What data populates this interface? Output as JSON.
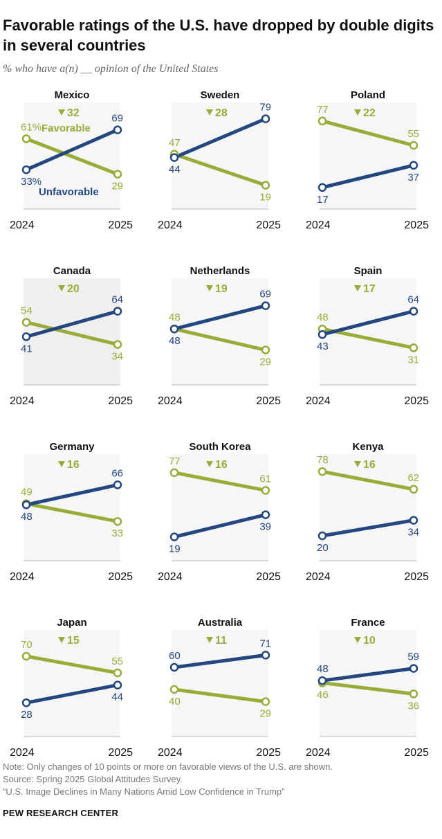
{
  "title": "Favorable ratings of the U.S. have dropped by double digits in several countries",
  "subtitle": "% who have a(n) __ opinion of the United States",
  "colors": {
    "favorable": "#9aab39",
    "unfavorable": "#24477f",
    "panel_shaded": "#efefef",
    "panel_plain": "#f6f6f6",
    "axis": "#bbbbbb"
  },
  "legend": {
    "favorable": "Favorable",
    "unfavorable": "Unfavorable"
  },
  "chart_data": {
    "type": "line",
    "x": [
      "2024",
      "2025"
    ],
    "ylim": [
      0,
      100
    ],
    "series_names": [
      "Favorable",
      "Unfavorable"
    ],
    "panels": [
      {
        "country": "Mexico",
        "change": "32",
        "favorable": [
          61,
          29
        ],
        "unfavorable": [
          33,
          69
        ],
        "labels": {
          "fav2024": "61%",
          "unf2024": "33%"
        }
      },
      {
        "country": "Sweden",
        "change": "28",
        "favorable": [
          47,
          19
        ],
        "unfavorable": [
          44,
          79
        ]
      },
      {
        "country": "Poland",
        "change": "22",
        "favorable": [
          77,
          55
        ],
        "unfavorable": [
          17,
          37
        ]
      },
      {
        "country": "Canada",
        "change": "20",
        "favorable": [
          54,
          34
        ],
        "unfavorable": [
          41,
          64
        ]
      },
      {
        "country": "Netherlands",
        "change": "19",
        "favorable": [
          48,
          29
        ],
        "unfavorable": [
          48,
          69
        ]
      },
      {
        "country": "Spain",
        "change": "17",
        "favorable": [
          48,
          31
        ],
        "unfavorable": [
          43,
          64
        ]
      },
      {
        "country": "Germany",
        "change": "16",
        "favorable": [
          49,
          33
        ],
        "unfavorable": [
          48,
          66
        ]
      },
      {
        "country": "South Korea",
        "change": "16",
        "favorable": [
          77,
          61
        ],
        "unfavorable": [
          19,
          39
        ]
      },
      {
        "country": "Kenya",
        "change": "16",
        "favorable": [
          78,
          62
        ],
        "unfavorable": [
          20,
          34
        ]
      },
      {
        "country": "Japan",
        "change": "15",
        "favorable": [
          70,
          55
        ],
        "unfavorable": [
          28,
          44
        ]
      },
      {
        "country": "Australia",
        "change": "11",
        "favorable": [
          40,
          29
        ],
        "unfavorable": [
          60,
          71
        ]
      },
      {
        "country": "France",
        "change": "10",
        "favorable": [
          46,
          36
        ],
        "unfavorable": [
          48,
          59
        ]
      }
    ]
  },
  "notes": {
    "note": "Note: Only changes of 10 points or more on favorable views of the U.S. are shown.",
    "source": "Source: Spring 2025 Global Attitudes Survey.",
    "report": "“U.S. Image Declines in Many Nations Amid Low Confidence in Trump”"
  },
  "footer": "PEW RESEARCH CENTER"
}
